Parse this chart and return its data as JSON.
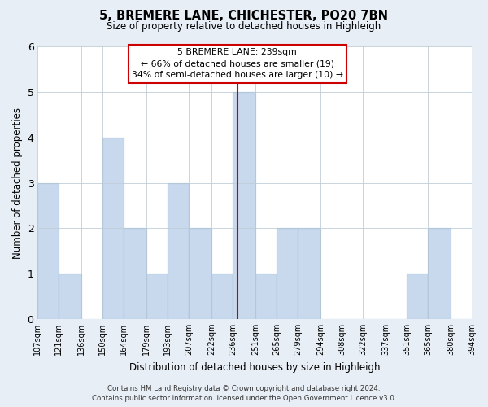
{
  "title": "5, BREMERE LANE, CHICHESTER, PO20 7BN",
  "subtitle": "Size of property relative to detached houses in Highleigh",
  "xlabel": "Distribution of detached houses by size in Highleigh",
  "ylabel": "Number of detached properties",
  "bar_color": "#c8d9ed",
  "bar_edge_color": "#7aadd4",
  "bins": [
    107,
    121,
    136,
    150,
    164,
    179,
    193,
    207,
    222,
    236,
    251,
    265,
    279,
    294,
    308,
    322,
    337,
    351,
    365,
    380,
    394
  ],
  "counts": [
    3,
    1,
    0,
    4,
    2,
    1,
    3,
    2,
    1,
    5,
    1,
    2,
    2,
    0,
    0,
    0,
    0,
    1,
    2,
    0
  ],
  "tick_labels": [
    "107sqm",
    "121sqm",
    "136sqm",
    "150sqm",
    "164sqm",
    "179sqm",
    "193sqm",
    "207sqm",
    "222sqm",
    "236sqm",
    "251sqm",
    "265sqm",
    "279sqm",
    "294sqm",
    "308sqm",
    "322sqm",
    "337sqm",
    "351sqm",
    "365sqm",
    "380sqm",
    "394sqm"
  ],
  "property_size": 239,
  "property_line_color": "#cc0000",
  "annotation_box_color": "#ffffff",
  "annotation_box_edge_color": "#cc0000",
  "annotation_title": "5 BREMERE LANE: 239sqm",
  "annotation_line1": "← 66% of detached houses are smaller (19)",
  "annotation_line2": "34% of semi-detached houses are larger (10) →",
  "ylim": [
    0,
    6
  ],
  "yticks": [
    0,
    1,
    2,
    3,
    4,
    5,
    6
  ],
  "footer_line1": "Contains HM Land Registry data © Crown copyright and database right 2024.",
  "footer_line2": "Contains public sector information licensed under the Open Government Licence v3.0.",
  "background_color": "#e8eef5",
  "plot_bg_color": "#ffffff",
  "grid_color": "#c0cdd8"
}
